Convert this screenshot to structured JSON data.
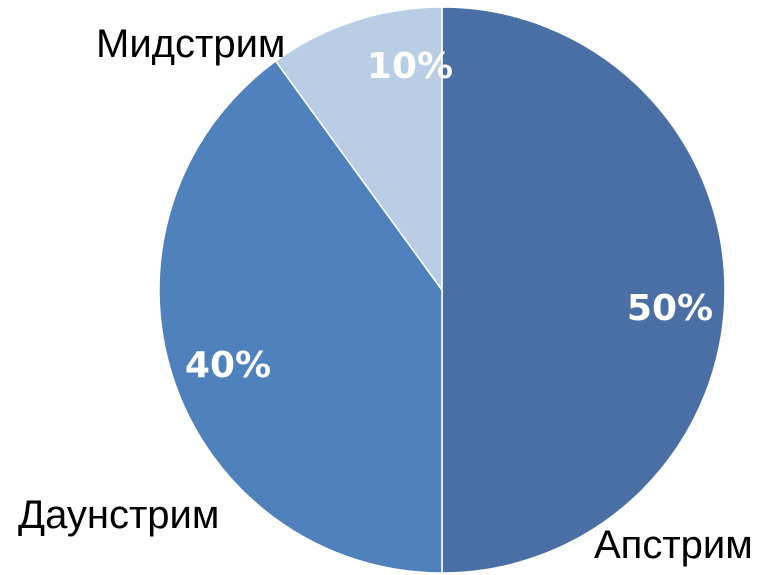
{
  "chart_data": {
    "type": "pie",
    "categories": [
      "Апстрим",
      "Даунстрим",
      "Мидстрим"
    ],
    "values": [
      50,
      40,
      10
    ],
    "value_labels": [
      "50%",
      "40%",
      "10%"
    ],
    "colors": [
      "#4a6fa5",
      "#4f81bd",
      "#b9cde5"
    ],
    "legend": "none",
    "start_angle": "12 o'clock",
    "direction": "clockwise"
  }
}
